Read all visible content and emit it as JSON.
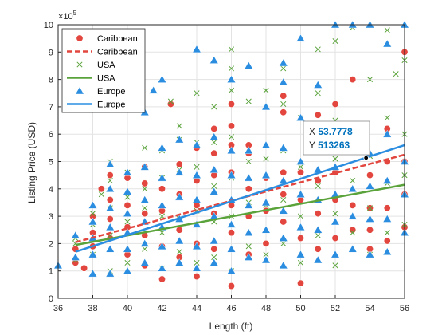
{
  "chart_data": {
    "type": "scatter",
    "title": "",
    "xlabel": "Length (ft)",
    "ylabel": "Listing Price (USD)",
    "y_exponent_label": "×10",
    "y_exponent_power": "5",
    "xlim": [
      36,
      56
    ],
    "ylim": [
      0,
      10
    ],
    "x_ticks": [
      36,
      38,
      40,
      42,
      44,
      46,
      48,
      50,
      52,
      54,
      56
    ],
    "y_ticks": [
      0,
      1,
      2,
      3,
      4,
      5,
      6,
      7,
      8,
      9,
      10
    ],
    "y_units": "x 10^5 USD",
    "grid": true,
    "legend_placement": "top-left",
    "series": [
      {
        "name": "Caribbean",
        "kind": "markers",
        "marker": "circle",
        "color": "#e2463e",
        "points": [
          [
            37,
            1.3
          ],
          [
            37,
            1.8
          ],
          [
            37.5,
            1.1
          ],
          [
            38,
            1.9
          ],
          [
            38,
            2.4
          ],
          [
            38,
            3.0
          ],
          [
            38.5,
            4.0
          ],
          [
            39,
            2.2
          ],
          [
            39,
            2.9
          ],
          [
            39,
            3.6
          ],
          [
            39,
            4.5
          ],
          [
            40,
            1.6
          ],
          [
            40,
            2.6
          ],
          [
            40,
            3.4
          ],
          [
            40,
            4.4
          ],
          [
            41,
            1.2
          ],
          [
            41,
            2.3
          ],
          [
            41,
            3.1
          ],
          [
            41,
            4.2
          ],
          [
            41,
            4.8
          ],
          [
            42,
            0.7
          ],
          [
            42,
            1.9
          ],
          [
            42,
            3.2
          ],
          [
            42,
            4.0
          ],
          [
            42.5,
            7.1
          ],
          [
            43,
            1.5
          ],
          [
            43,
            2.5
          ],
          [
            43,
            3.8
          ],
          [
            43,
            4.9
          ],
          [
            44,
            0.8
          ],
          [
            44,
            2.0
          ],
          [
            44,
            3.4
          ],
          [
            44,
            4.3
          ],
          [
            44,
            5.5
          ],
          [
            45,
            1.8
          ],
          [
            45,
            3.1
          ],
          [
            45,
            4.5
          ],
          [
            45,
            5.3
          ],
          [
            45,
            6.2
          ],
          [
            46,
            0.45
          ],
          [
            46,
            2.4
          ],
          [
            46,
            3.4
          ],
          [
            46,
            4.6
          ],
          [
            46,
            5.6
          ],
          [
            46,
            6.3
          ],
          [
            46,
            7.1
          ],
          [
            47,
            1.6
          ],
          [
            47,
            3.0
          ],
          [
            47,
            4.0
          ],
          [
            47,
            5.3
          ],
          [
            47,
            5.6
          ],
          [
            48,
            2.0
          ],
          [
            48,
            3.2
          ],
          [
            48,
            4.4
          ],
          [
            49,
            2.8
          ],
          [
            49,
            3.8
          ],
          [
            49,
            4.6
          ],
          [
            49,
            6.8
          ],
          [
            49,
            7.4
          ],
          [
            50,
            0.55
          ],
          [
            50,
            2.2
          ],
          [
            50,
            3.6
          ],
          [
            50,
            4.6
          ],
          [
            51,
            1.8
          ],
          [
            51,
            3.1
          ],
          [
            51,
            4.3
          ],
          [
            51,
            6.7
          ],
          [
            52,
            2.2
          ],
          [
            52,
            3.6
          ],
          [
            52,
            4.6
          ],
          [
            52,
            7.1
          ],
          [
            53,
            2.5
          ],
          [
            53,
            3.4
          ],
          [
            53,
            8.0
          ],
          [
            54,
            1.8
          ],
          [
            54,
            2.5
          ],
          [
            54,
            3.3
          ],
          [
            54,
            4.5
          ],
          [
            55,
            2.1
          ],
          [
            55,
            3.3
          ],
          [
            55,
            5.0
          ],
          [
            55,
            6.2
          ],
          [
            56,
            2.6
          ],
          [
            56,
            3.8
          ],
          [
            56,
            5.0
          ],
          [
            56,
            9.0
          ]
        ]
      },
      {
        "name": "Caribbean",
        "kind": "fit",
        "color": "#e2463e",
        "dashed": true,
        "x": [
          37,
          56
        ],
        "y": [
          2.05,
          5.25
        ]
      },
      {
        "name": "USA",
        "kind": "markers",
        "marker": "x",
        "color": "#5aa33b",
        "points": [
          [
            37,
            1.4
          ],
          [
            37,
            2.0
          ],
          [
            37,
            2.2
          ],
          [
            38,
            1.6
          ],
          [
            38,
            2.7
          ],
          [
            38,
            3.1
          ],
          [
            38.5,
            3.8
          ],
          [
            39,
            1.0
          ],
          [
            39,
            2.3
          ],
          [
            39,
            3.3
          ],
          [
            39,
            4.3
          ],
          [
            39,
            5.0
          ],
          [
            40,
            1.3
          ],
          [
            40,
            2.8
          ],
          [
            40,
            3.7
          ],
          [
            40,
            4.6
          ],
          [
            41,
            1.8
          ],
          [
            41,
            3.3
          ],
          [
            41,
            4.0
          ],
          [
            41,
            5.5
          ],
          [
            42,
            1.1
          ],
          [
            42,
            2.4
          ],
          [
            42,
            3.0
          ],
          [
            42,
            4.4
          ],
          [
            42,
            5.4
          ],
          [
            42.5,
            7.2
          ],
          [
            43,
            1.7
          ],
          [
            43,
            2.9
          ],
          [
            43,
            4.7
          ],
          [
            43,
            5.8
          ],
          [
            43,
            6.3
          ],
          [
            44,
            1.3
          ],
          [
            44,
            3.2
          ],
          [
            44,
            4.8
          ],
          [
            44,
            5.7
          ],
          [
            44,
            7.5
          ],
          [
            45,
            1.5
          ],
          [
            45,
            2.8
          ],
          [
            45,
            4.1
          ],
          [
            45,
            5.7
          ],
          [
            45,
            7.0
          ],
          [
            46,
            1.0
          ],
          [
            46,
            3.0
          ],
          [
            46,
            4.4
          ],
          [
            46,
            5.9
          ],
          [
            46,
            7.6
          ],
          [
            46,
            8.4
          ],
          [
            46,
            9.1
          ],
          [
            47,
            1.9
          ],
          [
            47,
            3.5
          ],
          [
            47,
            5.0
          ],
          [
            47,
            7.2
          ],
          [
            48,
            1.6
          ],
          [
            48,
            3.4
          ],
          [
            48,
            5.1
          ],
          [
            48,
            7.6
          ],
          [
            49,
            2.0
          ],
          [
            49,
            3.6
          ],
          [
            49,
            5.4
          ],
          [
            49,
            7.1
          ],
          [
            49,
            8.4
          ],
          [
            50,
            1.3
          ],
          [
            50,
            3.0
          ],
          [
            50,
            4.8
          ],
          [
            50,
            6.6
          ],
          [
            51,
            2.3
          ],
          [
            51,
            4.1
          ],
          [
            51,
            5.7
          ],
          [
            51,
            7.5
          ],
          [
            51,
            9.1
          ],
          [
            52,
            1.2
          ],
          [
            52,
            3.1
          ],
          [
            52,
            5.1
          ],
          [
            52,
            6.5
          ],
          [
            52,
            9.4
          ],
          [
            53,
            2.4
          ],
          [
            53,
            4.3
          ],
          [
            53,
            5.7
          ],
          [
            53,
            9.9
          ],
          [
            54,
            1.6
          ],
          [
            54,
            3.3
          ],
          [
            54,
            5.2
          ],
          [
            54,
            8.0
          ],
          [
            55,
            2.4
          ],
          [
            55,
            4.2
          ],
          [
            55,
            6.6
          ],
          [
            55,
            9.8
          ],
          [
            55.5,
            8.2
          ],
          [
            56,
            2.7
          ],
          [
            56,
            4.5
          ],
          [
            56,
            6.0
          ],
          [
            56,
            8.7
          ]
        ]
      },
      {
        "name": "USA",
        "kind": "fit",
        "color": "#5aa33b",
        "dashed": false,
        "x": [
          37,
          56
        ],
        "y": [
          1.95,
          4.15
        ]
      },
      {
        "name": "Europe",
        "kind": "markers",
        "marker": "triangle",
        "color": "#2a8de0",
        "points": [
          [
            36,
            1.2
          ],
          [
            37,
            1.5
          ],
          [
            37,
            2.3
          ],
          [
            38,
            0.9
          ],
          [
            38,
            1.6
          ],
          [
            38,
            2.2
          ],
          [
            38,
            2.8
          ],
          [
            38,
            3.4
          ],
          [
            39,
            0.9
          ],
          [
            39,
            1.8
          ],
          [
            39,
            2.6
          ],
          [
            39,
            3.3
          ],
          [
            39,
            4.0
          ],
          [
            39,
            4.9
          ],
          [
            40,
            1.0
          ],
          [
            40,
            1.8
          ],
          [
            40,
            2.4
          ],
          [
            40,
            3.1
          ],
          [
            40,
            3.9
          ],
          [
            40,
            4.6
          ],
          [
            41,
            1.3
          ],
          [
            41,
            2.0
          ],
          [
            41,
            2.8
          ],
          [
            41,
            3.6
          ],
          [
            41,
            4.8
          ],
          [
            41,
            6.8
          ],
          [
            41.5,
            7.6
          ],
          [
            42,
            1.1
          ],
          [
            42,
            1.9
          ],
          [
            42,
            2.6
          ],
          [
            42,
            3.4
          ],
          [
            42,
            4.4
          ],
          [
            42,
            5.5
          ],
          [
            42,
            8.0
          ],
          [
            43,
            1.3
          ],
          [
            43,
            2.1
          ],
          [
            43,
            2.9
          ],
          [
            43,
            3.7
          ],
          [
            43,
            4.6
          ],
          [
            43,
            5.8
          ],
          [
            44,
            1.1
          ],
          [
            44,
            1.9
          ],
          [
            44,
            2.7
          ],
          [
            44,
            3.6
          ],
          [
            44,
            4.5
          ],
          [
            44,
            5.6
          ],
          [
            44,
            9.1
          ],
          [
            45,
            1.3
          ],
          [
            45,
            2.1
          ],
          [
            45,
            3.0
          ],
          [
            45,
            3.9
          ],
          [
            45,
            4.7
          ],
          [
            45,
            5.9
          ],
          [
            45,
            8.7
          ],
          [
            46,
            1.0
          ],
          [
            46,
            1.8
          ],
          [
            46,
            2.7
          ],
          [
            46,
            3.6
          ],
          [
            46,
            4.5
          ],
          [
            46,
            5.4
          ],
          [
            46,
            8.0
          ],
          [
            47,
            1.5
          ],
          [
            47,
            2.4
          ],
          [
            47,
            3.4
          ],
          [
            47,
            4.4
          ],
          [
            47,
            5.4
          ],
          [
            47,
            8.5
          ],
          [
            48,
            1.4
          ],
          [
            48,
            2.5
          ],
          [
            48,
            3.5
          ],
          [
            48,
            4.5
          ],
          [
            48,
            5.6
          ],
          [
            48,
            7.0
          ],
          [
            49,
            1.2
          ],
          [
            49,
            2.2
          ],
          [
            49,
            3.2
          ],
          [
            49,
            4.3
          ],
          [
            49,
            5.5
          ],
          [
            49,
            7.9
          ],
          [
            49,
            8.6
          ],
          [
            50,
            1.6
          ],
          [
            50,
            2.6
          ],
          [
            50,
            3.8
          ],
          [
            50,
            5.0
          ],
          [
            50,
            6.6
          ],
          [
            50,
            9.5
          ],
          [
            51,
            1.4
          ],
          [
            51,
            2.5
          ],
          [
            51,
            3.6
          ],
          [
            51,
            4.7
          ],
          [
            51,
            5.7
          ],
          [
            51,
            7.8
          ],
          [
            52,
            1.6
          ],
          [
            52,
            2.8
          ],
          [
            52,
            3.8
          ],
          [
            52,
            4.8
          ],
          [
            52,
            10.0
          ],
          [
            53,
            1.8
          ],
          [
            53,
            3.0
          ],
          [
            53,
            4.0
          ],
          [
            53,
            5.5
          ],
          [
            53,
            10.0
          ],
          [
            54,
            1.6
          ],
          [
            54,
            2.9
          ],
          [
            54,
            4.1
          ],
          [
            54,
            5.3
          ],
          [
            54,
            10.0
          ],
          [
            55,
            1.7
          ],
          [
            55,
            2.9
          ],
          [
            55,
            4.3
          ],
          [
            55,
            6.0
          ],
          [
            55,
            9.3
          ],
          [
            56,
            2.4
          ],
          [
            56,
            3.8
          ],
          [
            56,
            5.0
          ],
          [
            56,
            10.0
          ]
        ]
      },
      {
        "name": "Europe",
        "kind": "fit",
        "color": "#2a8de0",
        "dashed": false,
        "x": [
          37,
          56
        ],
        "y": [
          1.7,
          5.6
        ]
      }
    ],
    "datatip": {
      "x_label": "X",
      "x_value": "53.7778",
      "y_label": "Y",
      "y_value": "513263",
      "x": 53.7778,
      "y": 5.13263
    }
  }
}
